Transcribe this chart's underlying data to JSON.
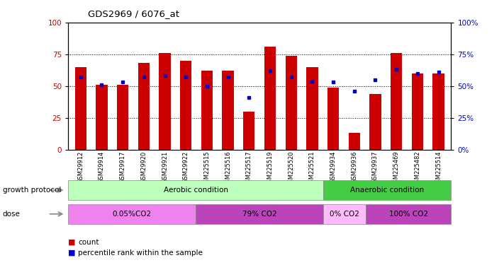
{
  "title": "GDS2969 / 6076_at",
  "samples": [
    "GSM29912",
    "GSM29914",
    "GSM29917",
    "GSM29920",
    "GSM29921",
    "GSM29922",
    "GSM225515",
    "GSM225516",
    "GSM225517",
    "GSM225519",
    "GSM225520",
    "GSM225521",
    "GSM29934",
    "GSM29936",
    "GSM29937",
    "GSM225469",
    "GSM225482",
    "GSM225514"
  ],
  "count_values": [
    65,
    51,
    51,
    68,
    76,
    70,
    62,
    62,
    30,
    81,
    74,
    65,
    49,
    13,
    44,
    76,
    60,
    60
  ],
  "percentile_values": [
    57,
    51,
    53,
    57,
    58,
    57,
    50,
    57,
    41,
    62,
    57,
    54,
    53,
    46,
    55,
    63,
    60,
    61
  ],
  "bar_color": "#cc0000",
  "dot_color": "#0000cc",
  "ylim": [
    0,
    100
  ],
  "yticks": [
    0,
    25,
    50,
    75,
    100
  ],
  "groups": [
    {
      "label": "Aerobic condition",
      "start": 0,
      "end": 12,
      "color": "#bbffbb"
    },
    {
      "label": "Anaerobic condition",
      "start": 12,
      "end": 18,
      "color": "#44cc44"
    }
  ],
  "doses": [
    {
      "label": "0.05%CO2",
      "start": 0,
      "end": 6,
      "color": "#ee82ee"
    },
    {
      "label": "79% CO2",
      "start": 6,
      "end": 12,
      "color": "#cc44cc"
    },
    {
      "label": "0% CO2",
      "start": 12,
      "end": 14,
      "color": "#ffaaff"
    },
    {
      "label": "100% CO2",
      "start": 14,
      "end": 18,
      "color": "#cc44cc"
    }
  ],
  "growth_protocol_label": "growth protocol",
  "dose_label": "dose",
  "legend_count_label": "count",
  "legend_pct_label": "percentile rank within the sample",
  "left_axis_color": "#cc0000",
  "right_axis_color": "#0000cc"
}
